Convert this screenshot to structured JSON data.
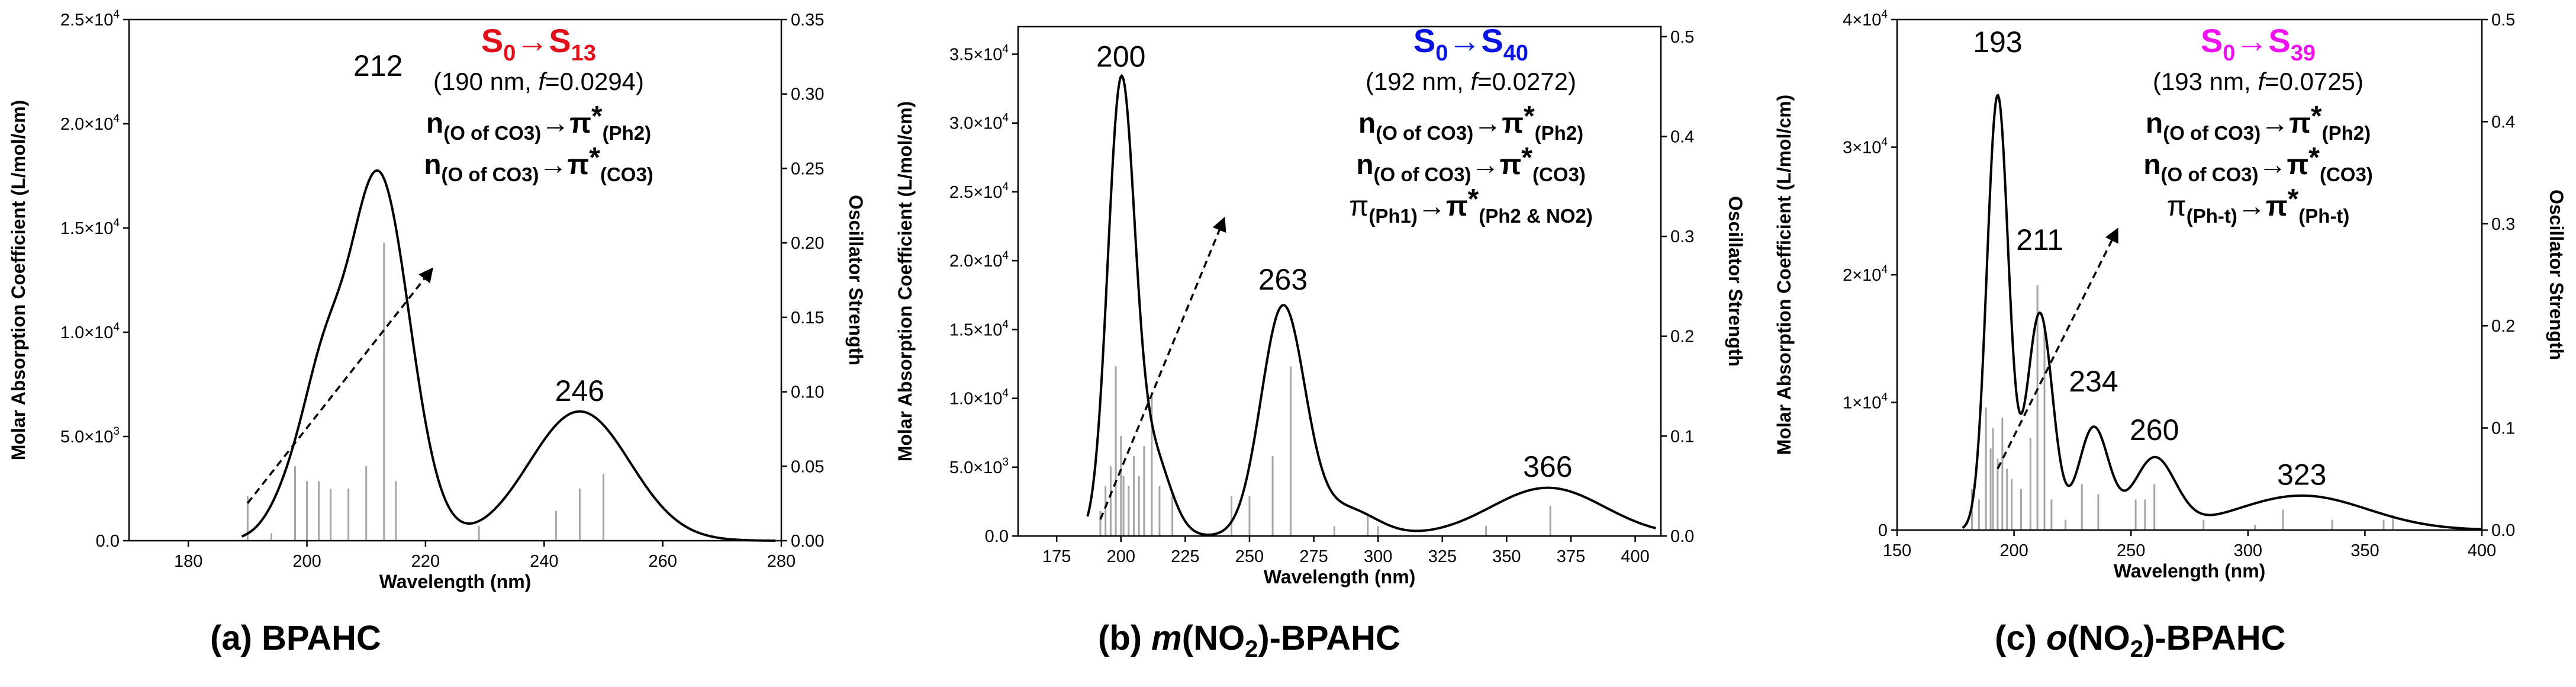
{
  "chart_data": [
    {
      "type": "line",
      "panel": "(a)",
      "compound": "BPAHC",
      "xlabel": "Wavelength (nm)",
      "ylabel": "Molar Absorption Coefficient (L/mol/cm)",
      "y2label": "Oscillator Strength",
      "xlim": [
        170,
        280
      ],
      "ylim": [
        0,
        25000
      ],
      "y2lim": [
        0,
        0.35
      ],
      "x_ticks": [
        180,
        200,
        220,
        240,
        260,
        280
      ],
      "y_ticks": [
        {
          "v": 0,
          "b": "0.0",
          "e": ""
        },
        {
          "v": 5000,
          "b": "5.0×10",
          "e": "3"
        },
        {
          "v": 10000,
          "b": "1.0×10",
          "e": "4"
        },
        {
          "v": 15000,
          "b": "1.5×10",
          "e": "4"
        },
        {
          "v": 20000,
          "b": "2.0×10",
          "e": "4"
        },
        {
          "v": 25000,
          "b": "2.5×10",
          "e": "4"
        }
      ],
      "y2_ticks": [
        "0.00",
        "0.05",
        "0.10",
        "0.15",
        "0.20",
        "0.25",
        "0.30",
        "0.35"
      ],
      "curve_range": [
        189,
        279
      ],
      "bands": [
        {
          "c": 212,
          "a": 17600,
          "w": 5.3
        },
        {
          "c": 200,
          "a": 4000,
          "w": 4.5
        },
        {
          "c": 203,
          "a": 2800,
          "w": 3
        },
        {
          "c": 246,
          "a": 6200,
          "w": 8.5
        }
      ],
      "sticks": [
        [
          190,
          0.03
        ],
        [
          194,
          0.005
        ],
        [
          198,
          0.05
        ],
        [
          200,
          0.04
        ],
        [
          202,
          0.04
        ],
        [
          204,
          0.035
        ],
        [
          207,
          0.035
        ],
        [
          210,
          0.05
        ],
        [
          213,
          0.2
        ],
        [
          215,
          0.04
        ],
        [
          229,
          0.01
        ],
        [
          242,
          0.02
        ],
        [
          246,
          0.035
        ],
        [
          250,
          0.045
        ]
      ],
      "peaks": [
        {
          "label": "212",
          "x": 212,
          "y": 21900
        },
        {
          "label": "246",
          "x": 246,
          "y": 6300
        }
      ],
      "arrow_from": [
        190,
        1800
      ],
      "arrow_to": [
        221,
        13000
      ],
      "transition": {
        "from": "S",
        "from_sub": "0",
        "arrow": "→",
        "to": "S",
        "to_sub": "13",
        "color": "#e0101a"
      },
      "info": "(190 nm, f=0.0294)",
      "info_parts": {
        "pre": "(190 nm, ",
        "f": "f",
        "post": "=0.0294)"
      },
      "assignments": [
        {
          "main": "n",
          "sub1": "(O of CO3)",
          "arrow": "→",
          "pi": "π",
          "star": "*",
          "sub2": "(Ph2)"
        },
        {
          "main": "n",
          "sub1": "(O of CO3)",
          "arrow": "→",
          "pi": "π",
          "star": "*",
          "sub2": "(CO3)"
        }
      ],
      "caption_label": "(a)",
      "caption_name": "BPAHC"
    },
    {
      "type": "line",
      "panel": "(b)",
      "compound": "m(NO2)-BPAHC",
      "xlabel": "Wavelength (nm)",
      "ylabel": "Molar Absorption Coefficient (L/mol/cm)",
      "y2label": "Oscillator Strength",
      "xlim": [
        160,
        410
      ],
      "ylim": [
        0,
        37000
      ],
      "y2lim": [
        0,
        0.51
      ],
      "x_ticks": [
        175,
        200,
        225,
        250,
        275,
        300,
        325,
        350,
        375,
        400
      ],
      "y_ticks": [
        {
          "v": 0,
          "b": "0.0",
          "e": ""
        },
        {
          "v": 5000,
          "b": "5.0×10",
          "e": "3"
        },
        {
          "v": 10000,
          "b": "1.0×10",
          "e": "4"
        },
        {
          "v": 15000,
          "b": "1.5×10",
          "e": "4"
        },
        {
          "v": 20000,
          "b": "2.0×10",
          "e": "4"
        },
        {
          "v": 25000,
          "b": "2.5×10",
          "e": "4"
        },
        {
          "v": 30000,
          "b": "3.0×10",
          "e": "4"
        },
        {
          "v": 35000,
          "b": "3.5×10",
          "e": "4"
        }
      ],
      "y2_ticks": [
        "0.0",
        "0.1",
        "0.2",
        "0.3",
        "0.4",
        "0.5"
      ],
      "curve_range": [
        187,
        408
      ],
      "bands": [
        {
          "c": 200,
          "a": 32000,
          "w": 5.2
        },
        {
          "c": 212,
          "a": 6000,
          "w": 7
        },
        {
          "c": 263,
          "a": 16500,
          "w": 8.5
        },
        {
          "c": 287,
          "a": 2000,
          "w": 12
        },
        {
          "c": 366,
          "a": 3500,
          "w": 22
        }
      ],
      "sticks": [
        [
          192,
          0.025
        ],
        [
          194,
          0.05
        ],
        [
          196,
          0.07
        ],
        [
          198,
          0.17
        ],
        [
          200,
          0.1
        ],
        [
          201,
          0.06
        ],
        [
          203,
          0.05
        ],
        [
          205,
          0.08
        ],
        [
          207,
          0.06
        ],
        [
          209,
          0.09
        ],
        [
          212,
          0.14
        ],
        [
          215,
          0.05
        ],
        [
          220,
          0.04
        ],
        [
          243,
          0.04
        ],
        [
          250,
          0.04
        ],
        [
          259,
          0.08
        ],
        [
          266,
          0.17
        ],
        [
          283,
          0.01
        ],
        [
          296,
          0.02
        ],
        [
          300,
          0.01
        ],
        [
          342,
          0.01
        ],
        [
          367,
          0.03
        ]
      ],
      "peaks": [
        {
          "label": "200",
          "x": 200,
          "y": 33500
        },
        {
          "label": "263",
          "x": 263,
          "y": 17300
        },
        {
          "label": "366",
          "x": 366,
          "y": 3700
        }
      ],
      "arrow_from": [
        192,
        1200
      ],
      "arrow_to": [
        240,
        23000
      ],
      "transition": {
        "from": "S",
        "from_sub": "0",
        "arrow": "→",
        "to": "S",
        "to_sub": "40",
        "color": "#0a14e0"
      },
      "info": "(192 nm, f=0.0272)",
      "info_parts": {
        "pre": "(192 nm, ",
        "f": "f",
        "post": "=0.0272)"
      },
      "assignments": [
        {
          "main": "n",
          "sub1": "(O of CO3)",
          "arrow": "→",
          "pi": "π",
          "star": "*",
          "sub2": "(Ph2)"
        },
        {
          "main": "n",
          "sub1": "(O of CO3)",
          "arrow": "→",
          "pi": "π",
          "star": "*",
          "sub2": "(CO3)"
        },
        {
          "main": "π",
          "sub1": "(Ph1)",
          "arrow": "→",
          "pi": "π",
          "star": "*",
          "sub2": "(Ph2 & NO2)"
        }
      ],
      "caption_label": "(b)",
      "caption_name_italic": "m",
      "caption_name_rest": "(NO",
      "caption_name_sub": "2",
      "caption_name_end": ")-BPAHC"
    },
    {
      "type": "line",
      "panel": "(c)",
      "compound": "o(NO2)-BPAHC",
      "xlabel": "Wavelength (nm)",
      "ylabel": "Molar Absorption Coefficient (L/mol/cm)",
      "y2label": "Oscillator Strength",
      "xlim": [
        150,
        400
      ],
      "ylim": [
        0,
        40000
      ],
      "y2lim": [
        0,
        0.5
      ],
      "x_ticks": [
        150,
        200,
        250,
        300,
        350,
        400
      ],
      "y_ticks": [
        {
          "v": 0,
          "b": "0",
          "e": ""
        },
        {
          "v": 10000,
          "b": "1×10",
          "e": "4"
        },
        {
          "v": 20000,
          "b": "2×10",
          "e": "4"
        },
        {
          "v": 30000,
          "b": "3×10",
          "e": "4"
        },
        {
          "v": 40000,
          "b": "4×10",
          "e": "4"
        }
      ],
      "y2_ticks": [
        "0.0",
        "0.1",
        "0.2",
        "0.3",
        "0.4",
        "0.5"
      ],
      "curve_range": [
        178,
        400
      ],
      "bands": [
        {
          "c": 193,
          "a": 34000,
          "w": 4.6
        },
        {
          "c": 211,
          "a": 17000,
          "w": 5.5
        },
        {
          "c": 234,
          "a": 8000,
          "w": 6.5
        },
        {
          "c": 260,
          "a": 5500,
          "w": 9
        },
        {
          "c": 323,
          "a": 2700,
          "w": 28
        }
      ],
      "sticks": [
        [
          182,
          0.04
        ],
        [
          185,
          0.03
        ],
        [
          188,
          0.12
        ],
        [
          190,
          0.08
        ],
        [
          191,
          0.1
        ],
        [
          193,
          0.07
        ],
        [
          195,
          0.11
        ],
        [
          197,
          0.06
        ],
        [
          199,
          0.05
        ],
        [
          203,
          0.04
        ],
        [
          207,
          0.09
        ],
        [
          210,
          0.24
        ],
        [
          213,
          0.2
        ],
        [
          216,
          0.03
        ],
        [
          222,
          0.01
        ],
        [
          229,
          0.045
        ],
        [
          236,
          0.035
        ],
        [
          252,
          0.03
        ],
        [
          256,
          0.03
        ],
        [
          260,
          0.045
        ],
        [
          281,
          0.01
        ],
        [
          303,
          0.005
        ],
        [
          315,
          0.02
        ],
        [
          336,
          0.01
        ],
        [
          358,
          0.01
        ],
        [
          362,
          0.015
        ]
      ],
      "peaks": [
        {
          "label": "193",
          "x": 193,
          "y": 36800
        },
        {
          "label": "211",
          "x": 211,
          "y": 21300
        },
        {
          "label": "234",
          "x": 234,
          "y": 10200
        },
        {
          "label": "260",
          "x": 260,
          "y": 6400
        },
        {
          "label": "323",
          "x": 323,
          "y": 2900
        }
      ],
      "arrow_from": [
        193,
        4800
      ],
      "arrow_to": [
        244,
        23500
      ],
      "transition": {
        "from": "S",
        "from_sub": "0",
        "arrow": "→",
        "to": "S",
        "to_sub": "39",
        "color": "#ee12ee"
      },
      "info": "(193 nm, f=0.0725)",
      "info_parts": {
        "pre": "(193 nm, ",
        "f": "f",
        "post": "=0.0725)"
      },
      "assignments": [
        {
          "main": "n",
          "sub1": "(O of CO3)",
          "arrow": "→",
          "pi": "π",
          "star": "*",
          "sub2": "(Ph2)"
        },
        {
          "main": "n",
          "sub1": "(O of CO3)",
          "arrow": "→",
          "pi": "π",
          "star": "*",
          "sub2": "(CO3)"
        },
        {
          "main": "π",
          "sub1": "(Ph-t)",
          "arrow": "→",
          "pi": "π",
          "star": "*",
          "sub2": "(Ph-t)"
        }
      ],
      "caption_label": "(c)",
      "caption_name_italic": "o",
      "caption_name_rest": "(NO",
      "caption_name_sub": "2",
      "caption_name_end": ")-BPAHC"
    }
  ]
}
